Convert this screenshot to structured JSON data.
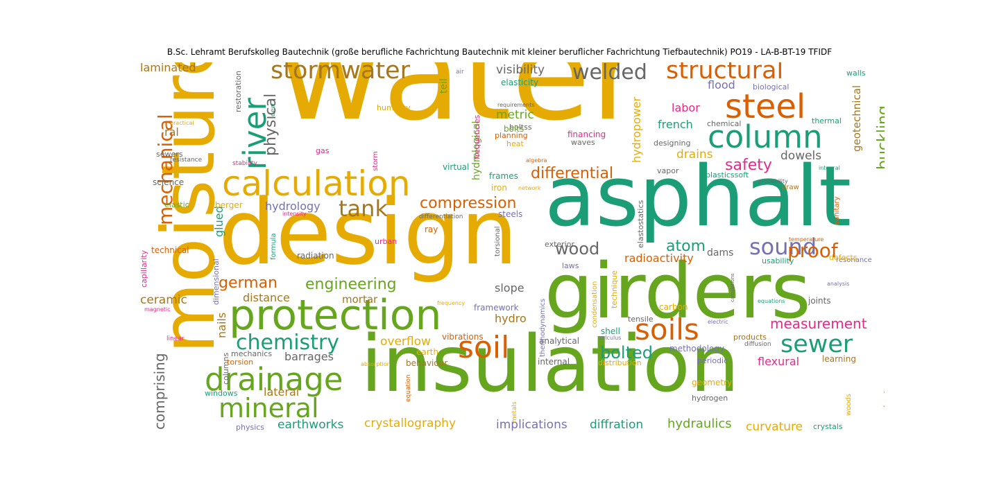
{
  "title": "B.Sc. Lehramt Berufskolleg Bautechnik (große berufliche Fachrichtung Bautechnik mit kleiner beruflicher Fachrichtung Tiefbautechnik)  PO19 - LA-B-BT-19 TFIDF",
  "palette": {
    "orange": "#e6ab02",
    "green": "#66a61e",
    "teal": "#1b9e77",
    "darkorange": "#d95f02",
    "purple": "#7570b3",
    "pink": "#e7298a",
    "brown": "#a6761d",
    "gray": "#666666"
  },
  "words": [
    "water",
    "asphalt",
    "design",
    "girders",
    "insulation",
    "moisture",
    "calculation",
    "protection",
    "steel",
    "column",
    "soils",
    "soil",
    "drainage",
    "stormwater",
    "structural",
    "welded",
    "river",
    "tank",
    "mineral",
    "chemistry",
    "sewer",
    "sound",
    "proof",
    "mechanical",
    "compression",
    "differential",
    "engineering",
    "german",
    "bolted",
    "safety",
    "atom",
    "wood",
    "physical",
    "buckling",
    "hydrology",
    "measurement",
    "crystallography",
    "hydraulics",
    "earthworks",
    "implications",
    "diffration",
    "curvature",
    "comprising",
    "overflow",
    "laminated",
    "visibility",
    "flood",
    "labor",
    "french",
    "drains",
    "dowels",
    "hydropower",
    "metric",
    "radioactivity",
    "ceramic",
    "distance",
    "mortar",
    "slope",
    "hydro",
    "barrages",
    "flexural",
    "lateral",
    "nails",
    "glued",
    "science",
    "elastic",
    "berger",
    "technical",
    "ral",
    "sewers",
    "resistance",
    "stability",
    "gas",
    "storm",
    "humidity",
    "planning",
    "heat",
    "financing",
    "waves",
    "virtual",
    "frames",
    "iron",
    "network",
    "steels",
    "differentiation",
    "intensity",
    "ray",
    "urban",
    "radiation",
    "formula",
    "dimensional",
    "capillarity",
    "magnetic",
    "linear",
    "columns",
    "mechanics",
    "torsion",
    "windows",
    "physics",
    "absorption",
    "equation",
    "metals",
    "behaviour",
    "earth",
    "vibrations",
    "analytical",
    "internal",
    "thermodynamics",
    "condensation",
    "technique",
    "tensile",
    "carbon",
    "shell",
    "calculus",
    "electric",
    "products",
    "diffusion",
    "methodology",
    "periodic",
    "learning",
    "geometry",
    "hydrogen",
    "distribution",
    "woods",
    "groundwater",
    "crystals",
    "joints",
    "equations",
    "analysis",
    "calculations",
    "usability",
    "resonance",
    "defects",
    "temperature",
    "sanitary",
    "plasticssoft",
    "probability",
    "draw",
    "vapor",
    "integral",
    "thermal",
    "chemical",
    "designing",
    "biological",
    "walls",
    "elasticity",
    "requirements",
    "boltss",
    "algebra",
    "dew",
    "restoration",
    "practical",
    "teil",
    "hydrological",
    "frequencies",
    "geotechnical",
    "constituents",
    "exterior",
    "laws",
    "dams",
    "elastostatics",
    "torsional",
    "framework",
    "frequency",
    "air",
    "bolts"
  ]
}
